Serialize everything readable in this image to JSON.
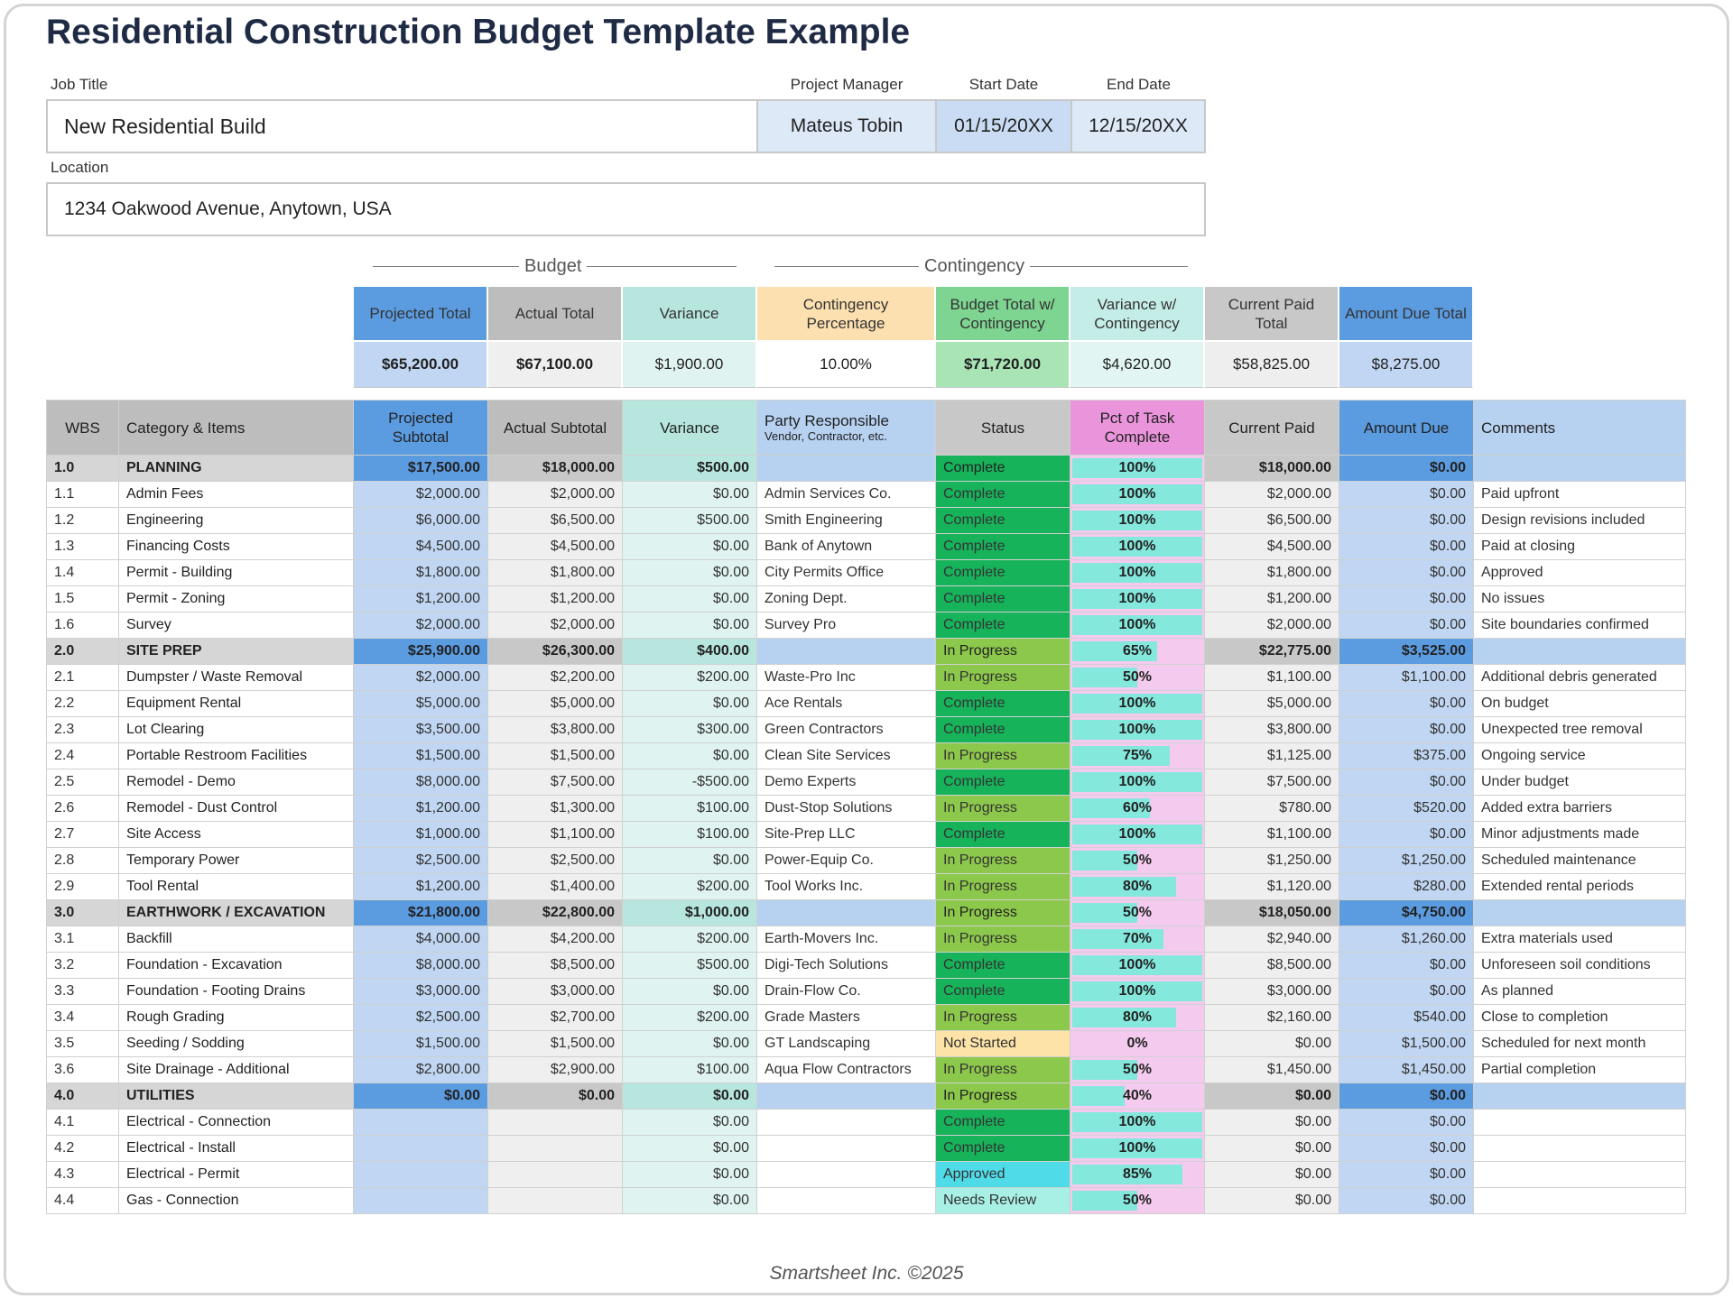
{
  "title": "Residential Construction Budget Template Example",
  "job": {
    "job_title_label": "Job Title",
    "job_title": "New Residential Build",
    "pm_label": "Project Manager",
    "pm": "Mateus Tobin",
    "start_label": "Start Date",
    "start": "01/15/20XX",
    "end_label": "End Date",
    "end": "12/15/20XX",
    "location_label": "Location",
    "location": "1234 Oakwood Avenue, Anytown, USA"
  },
  "summary": {
    "budget_label": "Budget",
    "contingency_label": "Contingency",
    "headers": [
      "Projected Total",
      "Actual Total",
      "Variance",
      "Contingency Percentage",
      "Budget Total w/ Contingency",
      "Variance w/ Contingency",
      "Current Paid Total",
      "Amount Due Total"
    ],
    "values": [
      "$65,200.00",
      "$67,100.00",
      "$1,900.00",
      "10.00%",
      "$71,720.00",
      "$4,620.00",
      "$58,825.00",
      "$8,275.00"
    ]
  },
  "table": {
    "header": [
      "WBS",
      "Category & Items",
      "Projected Subtotal",
      "Actual Subtotal",
      "Variance",
      "Party Responsible",
      "Status",
      "Pct of Task Complete",
      "Current Paid",
      "Amount Due",
      "Comments"
    ],
    "header_note": "Vendor, Contractor, etc.",
    "status_colors": {
      "Complete": "#17b35a",
      "In Progress": "#8cc84b",
      "Not Started": "#fde3a7",
      "Approved": "#4fdbe8",
      "Needs Review": "#a8efe6"
    },
    "sections": [
      {
        "row": [
          "1.0",
          "PLANNING",
          "$17,500.00",
          "$18,000.00",
          "$500.00",
          null,
          "Complete",
          "100%",
          "$18,000.00",
          "$0.00",
          null
        ],
        "items": [
          [
            "1.1",
            "Admin Fees",
            "$2,000.00",
            "$2,000.00",
            "$0.00",
            "Admin Services Co.",
            "Complete",
            "100%",
            "$2,000.00",
            "$0.00",
            "Paid upfront"
          ],
          [
            "1.2",
            "Engineering",
            "$6,000.00",
            "$6,500.00",
            "$500.00",
            "Smith Engineering",
            "Complete",
            "100%",
            "$6,500.00",
            "$0.00",
            "Design revisions included"
          ],
          [
            "1.3",
            "Financing Costs",
            "$4,500.00",
            "$4,500.00",
            "$0.00",
            "Bank of Anytown",
            "Complete",
            "100%",
            "$4,500.00",
            "$0.00",
            "Paid at closing"
          ],
          [
            "1.4",
            "Permit - Building",
            "$1,800.00",
            "$1,800.00",
            "$0.00",
            "City Permits Office",
            "Complete",
            "100%",
            "$1,800.00",
            "$0.00",
            "Approved"
          ],
          [
            "1.5",
            "Permit - Zoning",
            "$1,200.00",
            "$1,200.00",
            "$0.00",
            "Zoning Dept.",
            "Complete",
            "100%",
            "$1,200.00",
            "$0.00",
            "No issues"
          ],
          [
            "1.6",
            "Survey",
            "$2,000.00",
            "$2,000.00",
            "$0.00",
            "Survey Pro",
            "Complete",
            "100%",
            "$2,000.00",
            "$0.00",
            "Site boundaries confirmed"
          ]
        ]
      },
      {
        "row": [
          "2.0",
          "SITE PREP",
          "$25,900.00",
          "$26,300.00",
          "$400.00",
          null,
          "In Progress",
          "65%",
          "$22,775.00",
          "$3,525.00",
          null
        ],
        "items": [
          [
            "2.1",
            "Dumpster / Waste Removal",
            "$2,000.00",
            "$2,200.00",
            "$200.00",
            "Waste-Pro Inc",
            "In Progress",
            "50%",
            "$1,100.00",
            "$1,100.00",
            "Additional debris generated"
          ],
          [
            "2.2",
            "Equipment Rental",
            "$5,000.00",
            "$5,000.00",
            "$0.00",
            "Ace Rentals",
            "Complete",
            "100%",
            "$5,000.00",
            "$0.00",
            "On budget"
          ],
          [
            "2.3",
            "Lot Clearing",
            "$3,500.00",
            "$3,800.00",
            "$300.00",
            "Green Contractors",
            "Complete",
            "100%",
            "$3,800.00",
            "$0.00",
            "Unexpected tree removal"
          ],
          [
            "2.4",
            "Portable Restroom Facilities",
            "$1,500.00",
            "$1,500.00",
            "$0.00",
            "Clean Site Services",
            "In Progress",
            "75%",
            "$1,125.00",
            "$375.00",
            "Ongoing service"
          ],
          [
            "2.5",
            "Remodel - Demo",
            "$8,000.00",
            "$7,500.00",
            "-$500.00",
            "Demo Experts",
            "Complete",
            "100%",
            "$7,500.00",
            "$0.00",
            "Under budget"
          ],
          [
            "2.6",
            "Remodel - Dust Control",
            "$1,200.00",
            "$1,300.00",
            "$100.00",
            "Dust-Stop Solutions",
            "In Progress",
            "60%",
            "$780.00",
            "$520.00",
            "Added extra barriers"
          ],
          [
            "2.7",
            "Site Access",
            "$1,000.00",
            "$1,100.00",
            "$100.00",
            "Site-Prep LLC",
            "Complete",
            "100%",
            "$1,100.00",
            "$0.00",
            "Minor adjustments made"
          ],
          [
            "2.8",
            "Temporary Power",
            "$2,500.00",
            "$2,500.00",
            "$0.00",
            "Power-Equip Co.",
            "In Progress",
            "50%",
            "$1,250.00",
            "$1,250.00",
            "Scheduled maintenance"
          ],
          [
            "2.9",
            "Tool Rental",
            "$1,200.00",
            "$1,400.00",
            "$200.00",
            "Tool Works Inc.",
            "In Progress",
            "80%",
            "$1,120.00",
            "$280.00",
            "Extended rental periods"
          ]
        ]
      },
      {
        "row": [
          "3.0",
          "EARTHWORK / EXCAVATION",
          "$21,800.00",
          "$22,800.00",
          "$1,000.00",
          null,
          "In Progress",
          "50%",
          "$18,050.00",
          "$4,750.00",
          null
        ],
        "items": [
          [
            "3.1",
            "Backfill",
            "$4,000.00",
            "$4,200.00",
            "$200.00",
            "Earth-Movers Inc.",
            "In Progress",
            "70%",
            "$2,940.00",
            "$1,260.00",
            "Extra materials used"
          ],
          [
            "3.2",
            "Foundation - Excavation",
            "$8,000.00",
            "$8,500.00",
            "$500.00",
            "Digi-Tech Solutions",
            "Complete",
            "100%",
            "$8,500.00",
            "$0.00",
            "Unforeseen soil conditions"
          ],
          [
            "3.3",
            "Foundation - Footing Drains",
            "$3,000.00",
            "$3,000.00",
            "$0.00",
            "Drain-Flow Co.",
            "Complete",
            "100%",
            "$3,000.00",
            "$0.00",
            "As planned"
          ],
          [
            "3.4",
            "Rough Grading",
            "$2,500.00",
            "$2,700.00",
            "$200.00",
            "Grade Masters",
            "In Progress",
            "80%",
            "$2,160.00",
            "$540.00",
            "Close to completion"
          ],
          [
            "3.5",
            "Seeding / Sodding",
            "$1,500.00",
            "$1,500.00",
            "$0.00",
            "GT Landscaping",
            "Not Started",
            "0%",
            "$0.00",
            "$1,500.00",
            "Scheduled for next month"
          ],
          [
            "3.6",
            "Site Drainage - Additional",
            "$2,800.00",
            "$2,900.00",
            "$100.00",
            "Aqua Flow Contractors",
            "In Progress",
            "50%",
            "$1,450.00",
            "$1,450.00",
            "Partial completion"
          ]
        ]
      },
      {
        "row": [
          "4.0",
          "UTILITIES",
          "$0.00",
          "$0.00",
          "$0.00",
          null,
          "In Progress",
          "40%",
          "$0.00",
          "$0.00",
          null
        ],
        "items": [
          [
            "4.1",
            "Electrical - Connection",
            null,
            null,
            "$0.00",
            null,
            "Complete",
            "100%",
            "$0.00",
            "$0.00",
            null
          ],
          [
            "4.2",
            "Electrical - Install",
            null,
            null,
            "$0.00",
            null,
            "Complete",
            "100%",
            "$0.00",
            "$0.00",
            null
          ],
          [
            "4.3",
            "Electrical - Permit",
            null,
            null,
            "$0.00",
            null,
            "Approved",
            "85%",
            "$0.00",
            "$0.00",
            null
          ],
          [
            "4.4",
            "Gas - Connection",
            null,
            null,
            "$0.00",
            null,
            "Needs Review",
            "50%",
            "$0.00",
            "$0.00",
            null
          ]
        ]
      }
    ]
  },
  "footer": "Smartsheet Inc. ©2025"
}
